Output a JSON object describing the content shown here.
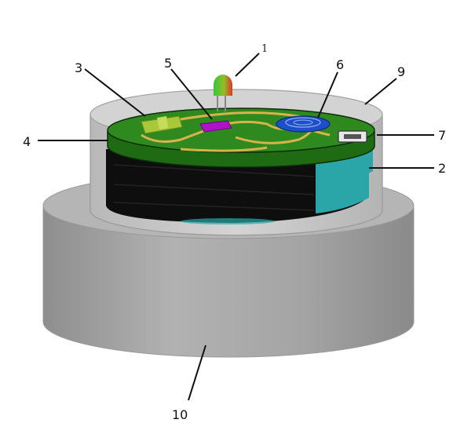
{
  "diagram": {
    "labels": [
      {
        "id": "led",
        "number": "1"
      },
      {
        "id": "battery",
        "number": "2"
      },
      {
        "id": "chip-green",
        "number": "3"
      },
      {
        "id": "pcb",
        "number": "4"
      },
      {
        "id": "chip-purple",
        "number": "5"
      },
      {
        "id": "sensor",
        "number": "6"
      },
      {
        "id": "usb-port",
        "number": "7"
      },
      {
        "id": "enclosure",
        "number": "9"
      },
      {
        "id": "base",
        "number": "10"
      }
    ]
  },
  "colors": {
    "pcb_green": "#2e8a1e",
    "pcb_edge": "#1f6b14",
    "trace": "#d8b24a",
    "chip_green": "#a8c83a",
    "chip_purple": "#b012c8",
    "sensor_blue": "#1f4fc8",
    "battery_dark": "#0d0d0d",
    "battery_teal": "#2aa6a8",
    "enclosure_grey": "#c9c9c9",
    "base_grey": "#a6a6a6",
    "led_green": "#39c43a",
    "led_red": "#e0352a"
  }
}
